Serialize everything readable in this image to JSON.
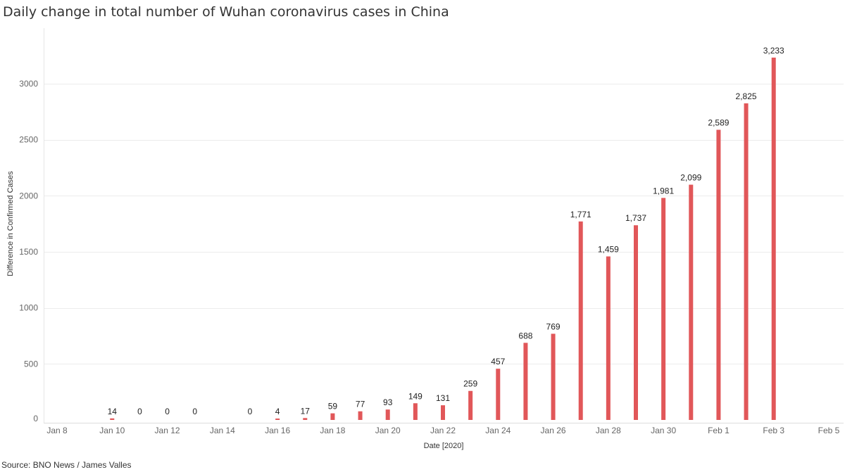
{
  "chart_data": {
    "type": "bar",
    "title": "Daily change in total number of Wuhan coronavirus cases in China",
    "xlabel": "Date [2020]",
    "ylabel": "Difference in Confirmed Cases",
    "source": "Source: BNO News / James Valles",
    "bar_color": "#e15759",
    "grid": true,
    "ylim": [
      0,
      3500
    ],
    "yticks": [
      0,
      500,
      1000,
      1500,
      2000,
      2500,
      3000
    ],
    "xlim": [
      "2020-01-08",
      "2020-02-05"
    ],
    "xticks": [
      {
        "date": "2020-01-08",
        "label": "Jan 8"
      },
      {
        "date": "2020-01-10",
        "label": "Jan 10"
      },
      {
        "date": "2020-01-12",
        "label": "Jan 12"
      },
      {
        "date": "2020-01-14",
        "label": "Jan 14"
      },
      {
        "date": "2020-01-16",
        "label": "Jan 16"
      },
      {
        "date": "2020-01-18",
        "label": "Jan 18"
      },
      {
        "date": "2020-01-20",
        "label": "Jan 20"
      },
      {
        "date": "2020-01-22",
        "label": "Jan 22"
      },
      {
        "date": "2020-01-24",
        "label": "Jan 24"
      },
      {
        "date": "2020-01-26",
        "label": "Jan 26"
      },
      {
        "date": "2020-01-28",
        "label": "Jan 28"
      },
      {
        "date": "2020-01-30",
        "label": "Jan 30"
      },
      {
        "date": "2020-02-01",
        "label": "Feb 1"
      },
      {
        "date": "2020-02-03",
        "label": "Feb 3"
      },
      {
        "date": "2020-02-05",
        "label": "Feb 5"
      }
    ],
    "points": [
      {
        "date": "2020-01-10",
        "value": 14,
        "label": "14"
      },
      {
        "date": "2020-01-11",
        "value": 0,
        "label": "0"
      },
      {
        "date": "2020-01-12",
        "value": 0,
        "label": "0"
      },
      {
        "date": "2020-01-13",
        "value": 0,
        "label": "0"
      },
      {
        "date": "2020-01-15",
        "value": 0,
        "label": "0"
      },
      {
        "date": "2020-01-16",
        "value": 4,
        "label": "4"
      },
      {
        "date": "2020-01-17",
        "value": 17,
        "label": "17"
      },
      {
        "date": "2020-01-18",
        "value": 59,
        "label": "59"
      },
      {
        "date": "2020-01-19",
        "value": 77,
        "label": "77"
      },
      {
        "date": "2020-01-20",
        "value": 93,
        "label": "93"
      },
      {
        "date": "2020-01-21",
        "value": 149,
        "label": "149"
      },
      {
        "date": "2020-01-22",
        "value": 131,
        "label": "131"
      },
      {
        "date": "2020-01-23",
        "value": 259,
        "label": "259"
      },
      {
        "date": "2020-01-24",
        "value": 457,
        "label": "457"
      },
      {
        "date": "2020-01-25",
        "value": 688,
        "label": "688"
      },
      {
        "date": "2020-01-26",
        "value": 769,
        "label": "769"
      },
      {
        "date": "2020-01-27",
        "value": 1771,
        "label": "1,771"
      },
      {
        "date": "2020-01-28",
        "value": 1459,
        "label": "1,459"
      },
      {
        "date": "2020-01-29",
        "value": 1737,
        "label": "1,737"
      },
      {
        "date": "2020-01-30",
        "value": 1981,
        "label": "1,981"
      },
      {
        "date": "2020-01-31",
        "value": 2099,
        "label": "2,099"
      },
      {
        "date": "2020-02-01",
        "value": 2589,
        "label": "2,589"
      },
      {
        "date": "2020-02-02",
        "value": 2825,
        "label": "2,825"
      },
      {
        "date": "2020-02-03",
        "value": 3233,
        "label": "3,233"
      }
    ]
  }
}
